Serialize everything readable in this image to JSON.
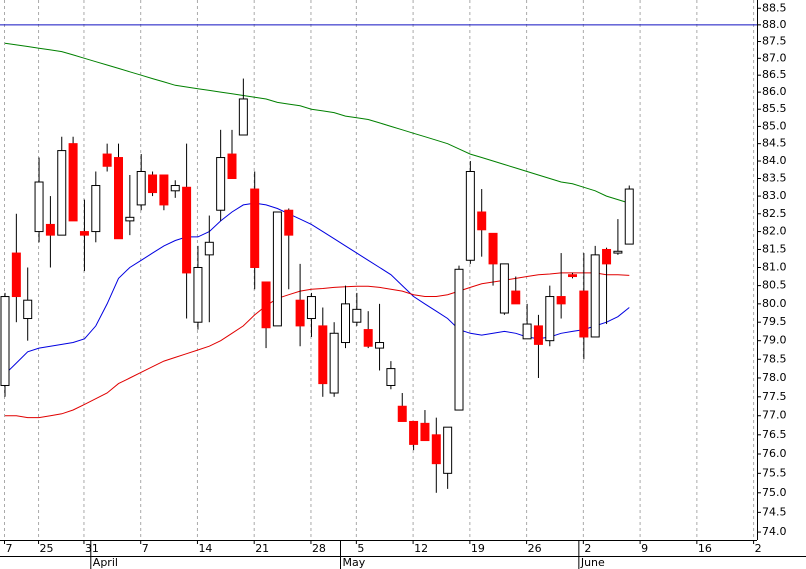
{
  "chart_data": {
    "type": "candlestick",
    "log_scale": true,
    "grid": true,
    "up_color": "#ffffff",
    "down_color": "#ff0000",
    "hline": {
      "value": 88,
      "color": "#1010c0"
    },
    "ylim": [
      73.8,
      88.75
    ],
    "yticks": [
      88.5,
      {
        "value": 88,
        "label": "88.0"
      },
      87.5,
      {
        "value": 87,
        "label": "87.0"
      },
      86.5,
      {
        "value": 86,
        "label": "86.0"
      },
      85.5,
      {
        "value": 85,
        "label": "85.0"
      },
      84.5,
      {
        "value": 84,
        "label": "84.0"
      },
      83.5,
      {
        "value": 83,
        "label": "83.0"
      },
      82.5,
      {
        "value": 82,
        "label": "82.0"
      },
      81.5,
      {
        "value": 81,
        "label": "81.0"
      },
      80.5,
      {
        "value": 80,
        "label": "80.0"
      },
      79.5,
      {
        "value": 79,
        "label": "79.0"
      },
      78.5,
      {
        "value": 78,
        "label": "78.0"
      },
      77.5,
      {
        "value": 77,
        "label": "77.0"
      },
      76.5,
      {
        "value": 76,
        "label": "76.0"
      },
      75.5,
      {
        "value": 75,
        "label": "75.0"
      },
      74.5,
      {
        "value": 74,
        "label": "74.0"
      }
    ],
    "categories": [
      "7",
      null,
      null,
      "25",
      null,
      null,
      null,
      "31",
      null,
      null,
      null,
      null,
      "7",
      null,
      null,
      null,
      null,
      "14",
      null,
      null,
      null,
      null,
      "21",
      null,
      null,
      null,
      null,
      "28",
      null,
      null,
      null,
      "5",
      null,
      null,
      null,
      null,
      "12",
      null,
      null,
      null,
      null,
      "19",
      null,
      null,
      null,
      null,
      "26",
      null,
      null,
      null,
      null,
      "2",
      null,
      null,
      null,
      null,
      "9",
      null,
      null,
      null,
      null,
      "16",
      null,
      null,
      null,
      null,
      "2"
    ],
    "months": [
      null,
      null,
      null,
      null,
      null,
      null,
      null,
      null,
      "April",
      null,
      null,
      null,
      null,
      null,
      null,
      null,
      null,
      null,
      null,
      null,
      null,
      null,
      null,
      null,
      null,
      null,
      null,
      null,
      null,
      null,
      "May",
      null,
      null,
      null,
      null,
      null,
      null,
      null,
      null,
      null,
      null,
      null,
      null,
      null,
      null,
      null,
      null,
      null,
      null,
      null,
      null,
      "June",
      null,
      null,
      null,
      null,
      null,
      null,
      null,
      null,
      null,
      null,
      null,
      null,
      null,
      null,
      null
    ],
    "open": [
      77.8,
      81.4,
      79.6,
      82.0,
      82.2,
      81.9,
      84.5,
      82.0,
      82.0,
      84.2,
      84.1,
      82.3,
      82.75,
      83.6,
      83.6,
      83.15,
      83.25,
      79.5,
      81.35,
      82.6,
      84.2,
      84.75,
      83.2,
      80.6,
      79.4,
      82.6,
      80.1,
      79.6,
      79.4,
      77.6,
      78.95,
      79.5,
      79.3,
      78.8,
      77.8,
      77.25,
      76.85,
      76.8,
      76.5,
      75.5,
      77.15,
      81.2,
      82.55,
      81.95,
      79.75,
      80.35,
      79.05,
      79.4,
      79.0,
      80.2,
      80.8,
      80.35,
      79.1,
      81.5,
      81.4,
      81.65,
      null,
      null,
      null,
      null,
      null,
      null,
      null,
      null,
      null,
      null,
      null
    ],
    "high": [
      80.3,
      82.5,
      81.0,
      84.1,
      83.0,
      84.7,
      84.7,
      82.9,
      83.7,
      84.5,
      84.5,
      83.6,
      84.2,
      83.7,
      83.6,
      83.45,
      84.5,
      81.6,
      82.45,
      84.9,
      84.9,
      86.4,
      83.7,
      80.6,
      82.55,
      82.65,
      81.1,
      80.3,
      79.9,
      79.5,
      80.5,
      80.3,
      79.8,
      80.0,
      78.45,
      77.6,
      76.85,
      77.15,
      76.95,
      76.7,
      81.05,
      84.0,
      83.2,
      81.95,
      81.1,
      80.75,
      80.0,
      79.7,
      80.5,
      81.4,
      80.85,
      81.4,
      81.6,
      81.55,
      82.35,
      83.3,
      null,
      null,
      null,
      null,
      null,
      null,
      null,
      null,
      null,
      null,
      null
    ],
    "low": [
      77.5,
      79.5,
      79.0,
      81.7,
      81.0,
      81.9,
      82.3,
      80.9,
      81.7,
      83.7,
      81.8,
      81.9,
      82.6,
      83.0,
      82.6,
      82.95,
      79.6,
      79.3,
      79.5,
      82.3,
      83.5,
      84.75,
      80.4,
      78.8,
      79.4,
      80.4,
      78.85,
      79.1,
      77.5,
      77.5,
      78.8,
      79.4,
      78.8,
      78.2,
      77.7,
      76.85,
      76.1,
      76.35,
      75.0,
      75.1,
      77.15,
      81.1,
      81.3,
      80.5,
      79.7,
      80.0,
      79.05,
      78.0,
      78.85,
      79.6,
      80.7,
      78.5,
      79.1,
      79.45,
      81.35,
      81.65,
      null,
      null,
      null,
      null,
      null,
      null,
      null,
      null,
      null,
      null,
      null
    ],
    "close": [
      80.2,
      80.2,
      80.1,
      83.4,
      81.9,
      84.3,
      82.3,
      81.9,
      83.3,
      83.85,
      81.8,
      82.4,
      83.7,
      83.1,
      82.75,
      83.3,
      80.85,
      81.0,
      81.7,
      84.1,
      83.5,
      85.8,
      81.0,
      79.35,
      82.55,
      81.9,
      79.4,
      80.2,
      77.85,
      79.2,
      80.0,
      79.85,
      78.85,
      78.95,
      78.25,
      76.85,
      76.25,
      76.35,
      75.75,
      76.7,
      80.95,
      83.7,
      82.05,
      81.1,
      81.1,
      80.0,
      79.45,
      78.9,
      80.2,
      80.0,
      80.75,
      79.1,
      81.35,
      81.1,
      81.45,
      83.2,
      null,
      null,
      null,
      null,
      null,
      null,
      null,
      null,
      null,
      null,
      null
    ],
    "series": [
      {
        "color": "#008000",
        "values": [
          87.45,
          87.4,
          87.35,
          87.3,
          87.25,
          87.2,
          87.1,
          87.0,
          86.9,
          86.8,
          86.7,
          86.6,
          86.5,
          86.4,
          86.3,
          86.2,
          86.15,
          86.1,
          86.05,
          86.0,
          85.95,
          85.9,
          85.85,
          85.8,
          85.7,
          85.65,
          85.6,
          85.5,
          85.45,
          85.4,
          85.3,
          85.25,
          85.2,
          85.1,
          85.0,
          84.9,
          84.8,
          84.7,
          84.6,
          84.5,
          84.35,
          84.2,
          84.1,
          84.0,
          83.9,
          83.8,
          83.7,
          83.6,
          83.5,
          83.4,
          83.35,
          83.25,
          83.15,
          83.0,
          82.9,
          82.8,
          null,
          null,
          null,
          null,
          null,
          null,
          null,
          null,
          null,
          null,
          null
        ]
      },
      {
        "color": "#0000e0",
        "values": [
          78.1,
          78.4,
          78.7,
          78.8,
          78.85,
          78.9,
          78.95,
          79.05,
          79.4,
          80.0,
          80.7,
          81.0,
          81.2,
          81.4,
          81.6,
          81.75,
          81.85,
          81.85,
          82.0,
          82.3,
          82.55,
          82.75,
          82.8,
          82.75,
          82.65,
          82.5,
          82.35,
          82.2,
          82.0,
          81.8,
          81.6,
          81.4,
          81.2,
          81.0,
          80.8,
          80.5,
          80.2,
          80.0,
          79.8,
          79.6,
          79.3,
          79.2,
          79.15,
          79.2,
          79.25,
          79.2,
          79.1,
          79.05,
          79.1,
          79.2,
          79.25,
          79.3,
          79.4,
          79.5,
          79.65,
          79.9,
          null,
          null,
          null,
          null,
          null,
          null,
          null,
          null,
          null,
          null,
          null
        ]
      },
      {
        "color": "#e00000",
        "values": [
          77.0,
          77.0,
          76.95,
          76.95,
          77.0,
          77.05,
          77.15,
          77.3,
          77.45,
          77.6,
          77.85,
          78.0,
          78.15,
          78.3,
          78.45,
          78.55,
          78.65,
          78.75,
          78.85,
          79.0,
          79.2,
          79.4,
          79.7,
          79.95,
          80.15,
          80.25,
          80.35,
          80.4,
          80.42,
          80.45,
          80.47,
          80.48,
          80.48,
          80.45,
          80.4,
          80.35,
          80.25,
          80.2,
          80.2,
          80.25,
          80.35,
          80.45,
          80.55,
          80.6,
          80.65,
          80.7,
          80.75,
          80.8,
          80.82,
          80.85,
          80.85,
          80.85,
          80.85,
          80.8,
          80.8,
          80.78,
          null,
          null,
          null,
          null,
          null,
          null,
          null,
          null,
          null,
          null,
          null
        ]
      }
    ]
  }
}
